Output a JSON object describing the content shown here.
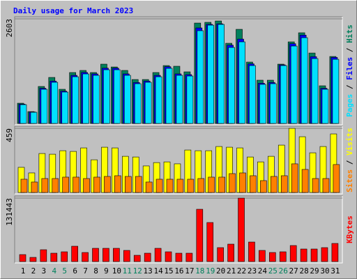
{
  "chart_data": [
    {
      "type": "bar",
      "title": "Daily usage for March 2023",
      "legend_separator": " / ",
      "ylim": [
        0,
        2603
      ],
      "yticks": [
        2603
      ],
      "series": [
        {
          "name": "Hits",
          "color": "#00805c",
          "values": [
            503,
            295,
            920,
            1145,
            850,
            1267,
            1319,
            1267,
            1475,
            1405,
            1319,
            1093,
            1093,
            1267,
            1440,
            1423,
            1284,
            2498,
            2516,
            2550,
            1995,
            2342,
            1527,
            1076,
            1076,
            1475,
            2030,
            2256,
            1752,
            937,
            1666
          ]
        },
        {
          "name": "Files",
          "color": "#0000ff",
          "values": [
            482,
            286,
            875,
            1055,
            804,
            1197,
            1269,
            1233,
            1376,
            1376,
            1233,
            1019,
            1055,
            1197,
            1412,
            1233,
            1215,
            2377,
            2466,
            2480,
            1948,
            2099,
            1483,
            1001,
            1019,
            1458,
            1984,
            2198,
            1662,
            875,
            1644
          ]
        },
        {
          "name": "Pages",
          "color": "#00e0ff",
          "values": [
            468,
            278,
            850,
            1024,
            781,
            1162,
            1232,
            1197,
            1336,
            1336,
            1197,
            989,
            1024,
            1162,
            1371,
            1197,
            1180,
            2308,
            2446,
            2464,
            1891,
            2030,
            1440,
            972,
            989,
            1440,
            1926,
            2134,
            1614,
            850,
            1596
          ]
        }
      ]
    },
    {
      "type": "bar",
      "legend_separator": " / ",
      "ylim": [
        0,
        459
      ],
      "yticks": [
        459
      ],
      "series": [
        {
          "name": "Visits",
          "color": "#ffff00",
          "values": [
            180,
            140,
            279,
            274,
            299,
            294,
            319,
            234,
            324,
            319,
            259,
            254,
            190,
            214,
            219,
            205,
            304,
            299,
            299,
            329,
            324,
            319,
            254,
            219,
            259,
            339,
            459,
            399,
            284,
            329,
            419
          ]
        },
        {
          "name": "Sites",
          "color": "#ff8000",
          "values": [
            95,
            75,
            100,
            100,
            110,
            110,
            100,
            110,
            115,
            120,
            115,
            115,
            75,
            95,
            95,
            95,
            95,
            100,
            110,
            110,
            135,
            140,
            120,
            85,
            115,
            120,
            205,
            165,
            100,
            100,
            200
          ]
        }
      ]
    },
    {
      "type": "bar",
      "ylim": [
        0,
        131443
      ],
      "yticks": [
        131443
      ],
      "categories": [
        "1",
        "2",
        "3",
        "4",
        "5",
        "6",
        "7",
        "8",
        "9",
        "10",
        "11",
        "12",
        "13",
        "14",
        "15",
        "16",
        "17",
        "18",
        "19",
        "20",
        "21",
        "22",
        "23",
        "24",
        "25",
        "26",
        "27",
        "28",
        "29",
        "30",
        "31"
      ],
      "category_colors": [
        "#000000",
        "#000000",
        "#000000",
        "#00805c",
        "#00805c",
        "#000000",
        "#000000",
        "#000000",
        "#000000",
        "#000000",
        "#00805c",
        "#00805c",
        "#000000",
        "#000000",
        "#000000",
        "#000000",
        "#000000",
        "#00805c",
        "#00805c",
        "#000000",
        "#000000",
        "#000000",
        "#000000",
        "#000000",
        "#00805c",
        "#00805c",
        "#000000",
        "#000000",
        "#000000",
        "#000000",
        "#000000"
      ],
      "series": [
        {
          "name": "KBytes",
          "color": "#ff0000",
          "values": [
            14440,
            8664,
            24548,
            17328,
            20216,
            31768,
            18772,
            27436,
            27436,
            27436,
            23104,
            12996,
            17328,
            27436,
            20216,
            17328,
            17328,
            108300,
            80864,
            28880,
            36100,
            131443,
            40432,
            23104,
            18772,
            20216,
            33212,
            25992,
            25992,
            28880,
            37544
          ]
        }
      ]
    }
  ]
}
